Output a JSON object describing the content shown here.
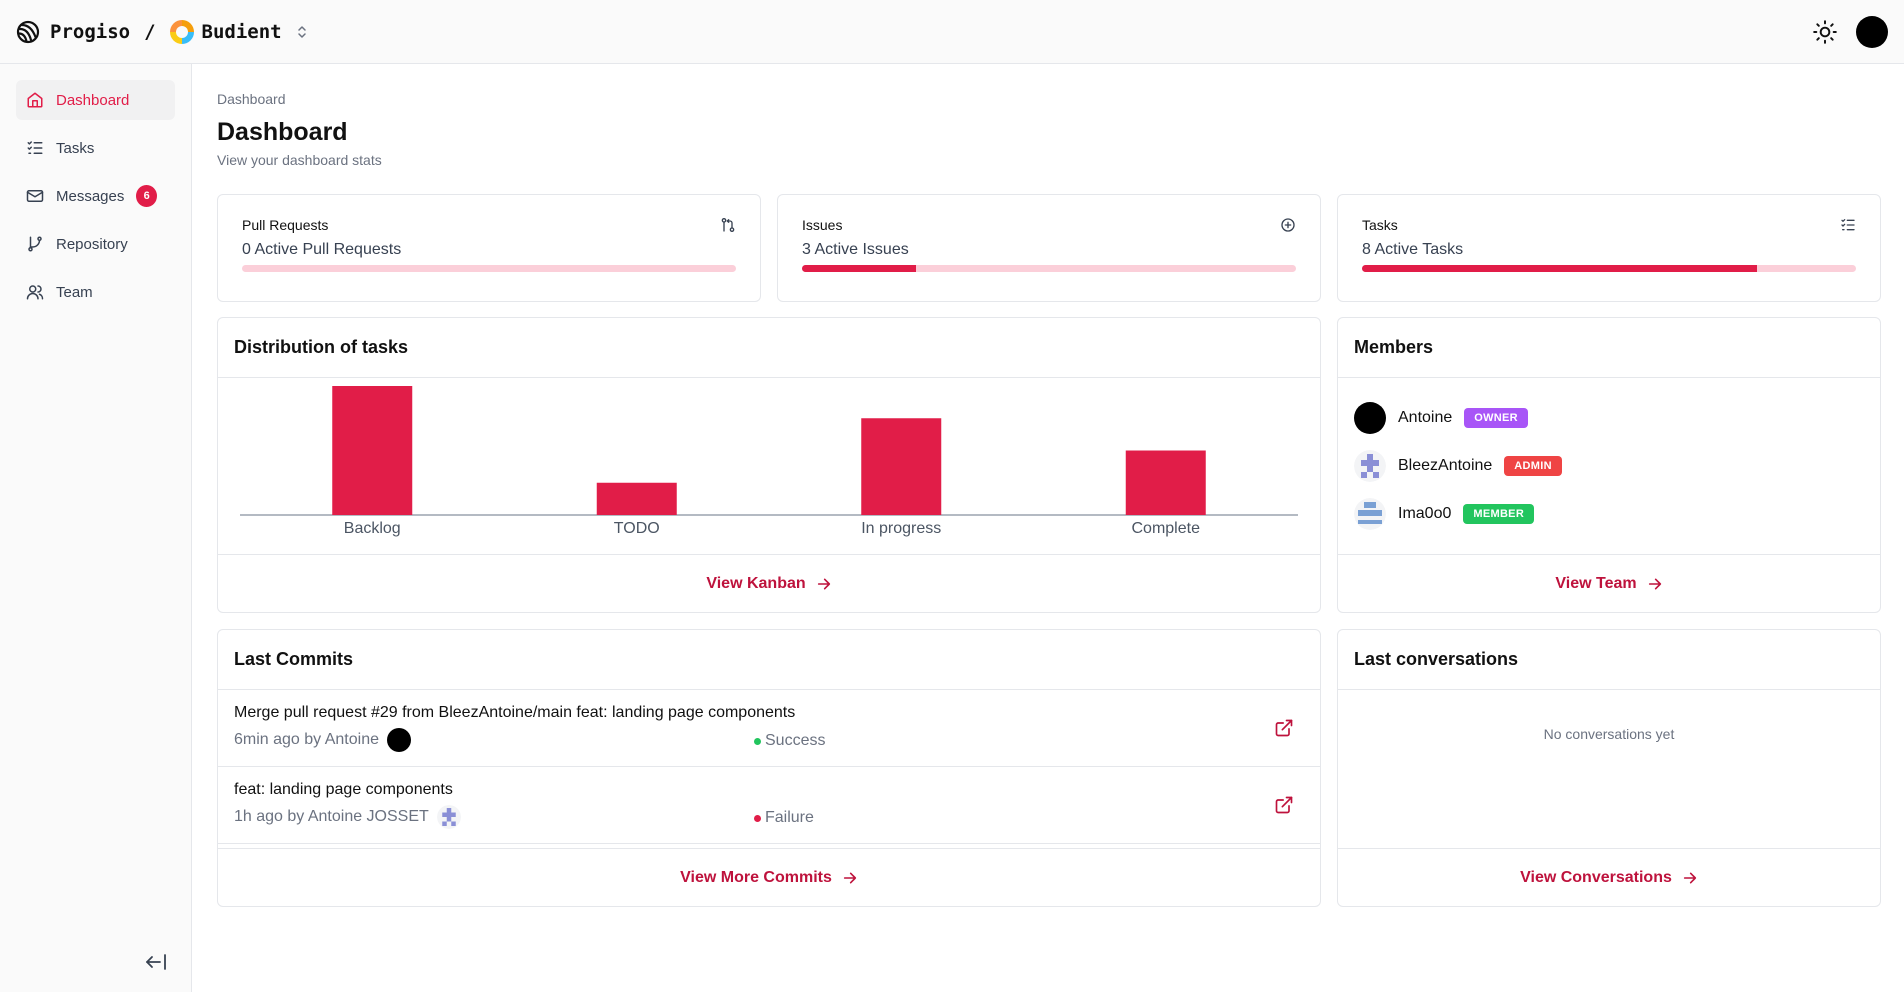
{
  "header": {
    "brand": "Progiso",
    "separator": "/",
    "project": "Budient"
  },
  "sidebar": {
    "items": [
      {
        "label": "Dashboard",
        "icon": "home-icon",
        "active": true
      },
      {
        "label": "Tasks",
        "icon": "tasks-icon"
      },
      {
        "label": "Messages",
        "icon": "mail-icon",
        "badge": "6"
      },
      {
        "label": "Repository",
        "icon": "git-branch-icon"
      },
      {
        "label": "Team",
        "icon": "users-icon"
      }
    ]
  },
  "page": {
    "breadcrumb": "Dashboard",
    "title": "Dashboard",
    "subtitle": "View your dashboard stats"
  },
  "stats": [
    {
      "label": "Pull Requests",
      "text": "0 Active Pull Requests",
      "icon": "git-pull-request-icon",
      "progress": 0.0
    },
    {
      "label": "Issues",
      "text": "3 Active Issues",
      "icon": "circle-plus-icon",
      "progress": 0.23
    },
    {
      "label": "Tasks",
      "text": "8 Active Tasks",
      "icon": "list-checks-icon",
      "progress": 0.8
    }
  ],
  "distribution": {
    "title": "Distribution of tasks",
    "link": "View Kanban"
  },
  "chart_data": {
    "type": "bar",
    "title": "",
    "categories": [
      "Backlog",
      "TODO",
      "In progress",
      "Complete"
    ],
    "values": [
      4,
      1,
      3,
      2
    ],
    "ylim": [
      0,
      4
    ],
    "grid": false,
    "color": "#e11d48"
  },
  "members": {
    "title": "Members",
    "list": [
      {
        "name": "Antoine",
        "role": "OWNER",
        "role_color": "#a855f7"
      },
      {
        "name": "BleezAntoine",
        "role": "ADMIN",
        "role_color": "#ef4444"
      },
      {
        "name": "Ima0o0",
        "role": "MEMBER",
        "role_color": "#22c55e"
      }
    ],
    "link": "View Team"
  },
  "commits": {
    "title": "Last Commits",
    "list": [
      {
        "message": "Merge pull request #29 from BleezAntoine/main feat: landing page components",
        "meta": "6min ago by Antoine",
        "status": "Success",
        "status_color": "#22c55e"
      },
      {
        "message": "feat: landing page components",
        "meta": "1h ago by Antoine JOSSET",
        "status": "Failure",
        "status_color": "#e11d48"
      }
    ],
    "link": "View More Commits"
  },
  "conversations": {
    "title": "Last conversations",
    "empty": "No conversations yet",
    "link": "View Conversations"
  }
}
